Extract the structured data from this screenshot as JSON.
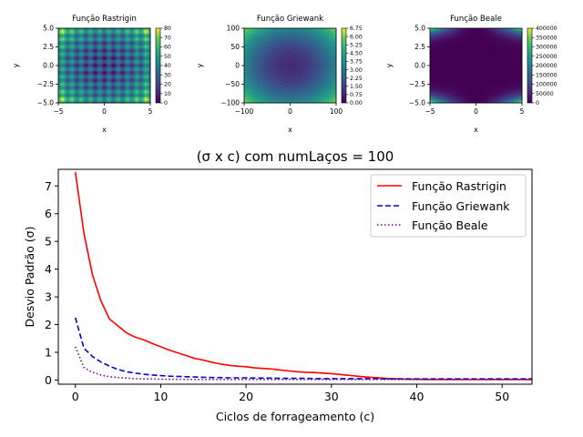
{
  "colors": {
    "rastrigin": "#ff0000",
    "griewank": "#0000cd",
    "beale": "#800080",
    "axis": "#000000"
  },
  "chart_data": [
    {
      "type": "heatmap",
      "title": "Função Rastrigin",
      "xlabel": "x",
      "ylabel": "y",
      "function": "rastrigin",
      "xlim": [
        -5,
        5
      ],
      "ylim": [
        -5,
        5
      ],
      "xticks": [
        "−5",
        "0",
        "5"
      ],
      "yticks": [
        "5.0",
        "2.5",
        "0.0",
        "−2.5",
        "−5.0"
      ],
      "colorbar": {
        "ticks": [
          "80",
          "70",
          "60",
          "50",
          "40",
          "30",
          "20",
          "10",
          "0"
        ],
        "range": [
          0,
          80
        ]
      }
    },
    {
      "type": "heatmap",
      "title": "Função Griewank",
      "xlabel": "x",
      "ylabel": "y",
      "function": "griewank",
      "xlim": [
        -100,
        100
      ],
      "ylim": [
        -100,
        100
      ],
      "xticks": [
        "−100",
        "0",
        "100"
      ],
      "yticks": [
        "100",
        "50",
        "0",
        "−50",
        "−100"
      ],
      "colorbar": {
        "ticks": [
          "6.75",
          "6.00",
          "5.25",
          "4.50",
          "3.75",
          "3.00",
          "2.25",
          "1.50",
          "0.75",
          "0.00"
        ],
        "range": [
          0,
          6.75
        ]
      }
    },
    {
      "type": "heatmap",
      "title": "Função Beale",
      "xlabel": "x",
      "ylabel": "y",
      "function": "beale",
      "xlim": [
        -5,
        5
      ],
      "ylim": [
        -5,
        5
      ],
      "xticks": [
        "−5",
        "0",
        "5"
      ],
      "yticks": [
        "5.0",
        "2.5",
        "0.0",
        "−2.5",
        "−5.0"
      ],
      "colorbar": {
        "ticks": [
          "400000",
          "350000",
          "300000",
          "250000",
          "200000",
          "150000",
          "100000",
          "50000",
          "0"
        ],
        "range": [
          0,
          400000
        ]
      }
    },
    {
      "type": "line",
      "title": "(σ x c) com numLaços = 100",
      "xlabel": "Ciclos de forrageamento (c)",
      "ylabel": "Desvio Padrão (σ)",
      "xlim": [
        -2,
        53.5
      ],
      "ylim": [
        -0.15,
        7.6
      ],
      "xticks": [
        0,
        10,
        20,
        30,
        40,
        50
      ],
      "yticks": [
        0,
        1,
        2,
        3,
        4,
        5,
        6,
        7
      ],
      "legend_position": "top-right",
      "x": [
        0,
        1,
        2,
        3,
        4,
        5,
        6,
        7,
        8,
        9,
        10,
        11,
        12,
        13,
        14,
        15,
        16,
        17,
        18,
        19,
        20,
        21,
        22,
        23,
        24,
        25,
        26,
        27,
        28,
        29,
        30,
        31,
        32,
        33,
        34,
        35,
        36,
        37,
        38,
        39,
        40,
        41,
        42,
        43,
        44,
        45,
        46,
        47,
        48,
        49,
        50,
        51,
        52,
        53,
        54
      ],
      "series": [
        {
          "name": "Função Rastrigin",
          "style": "solid",
          "values": [
            7.5,
            5.3,
            3.8,
            2.85,
            2.2,
            1.95,
            1.7,
            1.55,
            1.45,
            1.32,
            1.2,
            1.08,
            0.98,
            0.88,
            0.78,
            0.72,
            0.64,
            0.58,
            0.53,
            0.5,
            0.48,
            0.44,
            0.42,
            0.4,
            0.36,
            0.33,
            0.3,
            0.28,
            0.27,
            0.25,
            0.23,
            0.2,
            0.17,
            0.14,
            0.11,
            0.09,
            0.07,
            0.05,
            0.04,
            0.03,
            0.03,
            0.02,
            0.02,
            0.02,
            0.02,
            0.02,
            0.02,
            0.02,
            0.02,
            0.02,
            0.02,
            0.02,
            0.02,
            0.02,
            0.02
          ]
        },
        {
          "name": "Função Griewank",
          "style": "dashed",
          "values": [
            2.25,
            1.15,
            0.85,
            0.65,
            0.5,
            0.38,
            0.3,
            0.25,
            0.21,
            0.18,
            0.16,
            0.14,
            0.13,
            0.12,
            0.11,
            0.1,
            0.09,
            0.09,
            0.08,
            0.08,
            0.08,
            0.07,
            0.07,
            0.07,
            0.06,
            0.06,
            0.06,
            0.06,
            0.05,
            0.05,
            0.05,
            0.05,
            0.05,
            0.05,
            0.05,
            0.05,
            0.04,
            0.04,
            0.04,
            0.04,
            0.04,
            0.04,
            0.04,
            0.04,
            0.04,
            0.04,
            0.04,
            0.04,
            0.04,
            0.04,
            0.04,
            0.04,
            0.04,
            0.04,
            0.04
          ]
        },
        {
          "name": "Função Beale",
          "style": "dotted",
          "values": [
            1.2,
            0.45,
            0.28,
            0.18,
            0.12,
            0.09,
            0.07,
            0.05,
            0.04,
            0.04,
            0.03,
            0.03,
            0.03,
            0.02,
            0.02,
            0.02,
            0.02,
            0.02,
            0.02,
            0.02,
            0.02,
            0.02,
            0.02,
            0.02,
            0.02,
            0.02,
            0.02,
            0.02,
            0.02,
            0.02,
            0.02,
            0.02,
            0.02,
            0.02,
            0.02,
            0.02,
            0.02,
            0.02,
            0.02,
            0.02,
            0.02,
            0.02,
            0.02,
            0.02,
            0.02,
            0.02,
            0.02,
            0.02,
            0.02,
            0.02,
            0.02,
            0.02,
            0.02,
            0.02,
            0.02
          ]
        }
      ]
    }
  ]
}
